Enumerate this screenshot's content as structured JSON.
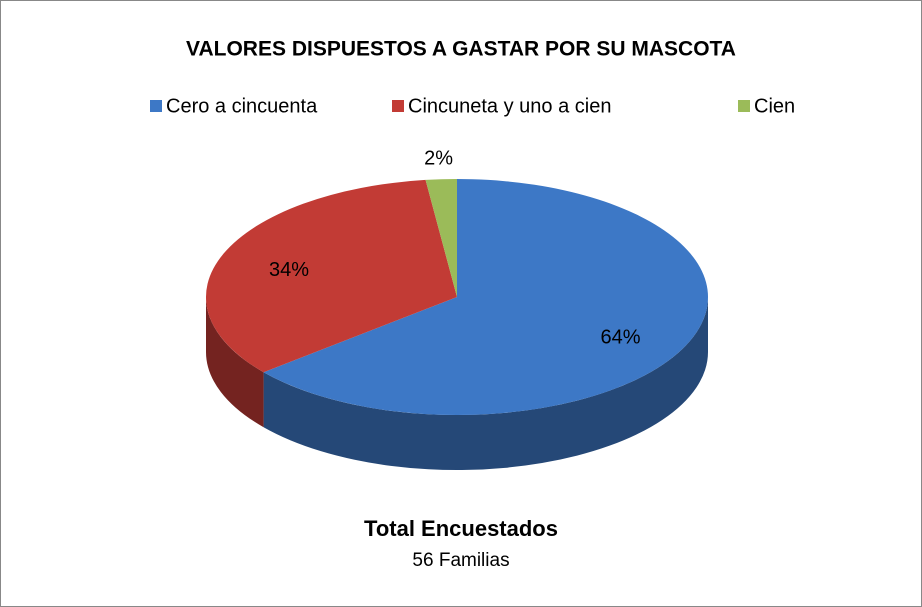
{
  "chart_data": {
    "type": "pie3d",
    "title": "VALORES DISPUESTOS A GASTAR POR SU MASCOTA",
    "categories": [
      "Cero a cincuenta",
      "Cincuneta y uno a cien",
      "Cien"
    ],
    "values": [
      64,
      34,
      2
    ],
    "value_labels": [
      "64%",
      "34%",
      "2%"
    ],
    "colors": [
      "#3d78c6",
      "#c23b35",
      "#9bbb59"
    ],
    "legend": "top",
    "annotations": [
      "Total Encuestados",
      "56 Familias"
    ]
  }
}
